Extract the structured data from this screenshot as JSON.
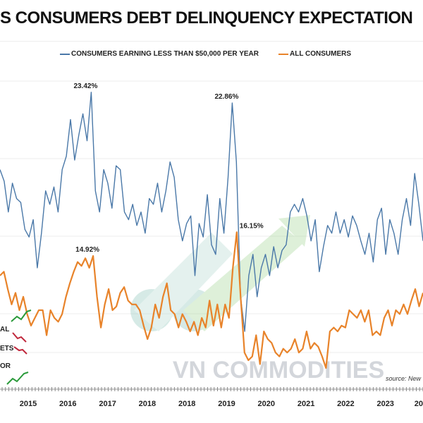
{
  "title": "S CONSUMERS DEBT DELINQUENCY EXPECTATION",
  "watermark": "VN COMMODITIES",
  "source": "source: New",
  "side_labels": [
    "AL",
    "ETS",
    "OR"
  ],
  "chart_data": {
    "type": "line",
    "title": "S CONSUMERS DEBT DELINQUENCY EXPECTATION",
    "xlabel": "",
    "ylabel": "",
    "ylim": [
      8.0,
      24.0
    ],
    "x_tick_labels": [
      "2015",
      "2016",
      "2017",
      "2018",
      "2018",
      "2019",
      "2020",
      "2021",
      "2022",
      "2023",
      "20"
    ],
    "grid": "faint horizontal",
    "legend_placement": "top",
    "series": [
      {
        "name": "CONSUMERS EARNING LESS THAN $50,000 PER YEAR",
        "color": "#4a78a8",
        "values": [
          19.4,
          18.8,
          17.2,
          18.7,
          17.9,
          17.7,
          16.3,
          15.9,
          16.8,
          14.3,
          16.1,
          18.3,
          17.6,
          18.5,
          17.2,
          19.4,
          20.1,
          22.0,
          19.9,
          21.2,
          22.3,
          20.9,
          23.42,
          18.3,
          17.2,
          19.4,
          18.7,
          17.4,
          19.6,
          19.4,
          17.2,
          16.8,
          17.6,
          16.5,
          17.2,
          16.1,
          17.9,
          17.6,
          18.7,
          17.2,
          18.3,
          19.8,
          19.0,
          16.8,
          15.7,
          16.6,
          17.0,
          13.9,
          16.6,
          15.9,
          18.1,
          15.5,
          15.0,
          17.9,
          16.1,
          19.0,
          22.86,
          19.8,
          12.8,
          11.0,
          13.9,
          15.0,
          12.8,
          14.3,
          15.0,
          13.9,
          15.4,
          14.3,
          15.2,
          15.5,
          17.2,
          17.6,
          17.2,
          17.9,
          17.0,
          15.7,
          16.8,
          14.1,
          15.4,
          16.5,
          16.1,
          17.2,
          16.1,
          16.8,
          15.9,
          17.0,
          16.5,
          15.7,
          15.0,
          16.1,
          14.6,
          16.8,
          17.4,
          15.0,
          16.8,
          16.1,
          15.0,
          16.8,
          17.9,
          16.5,
          19.2,
          17.6,
          15.7
        ],
        "annotations": [
          {
            "value": 23.42,
            "label": "23.42%"
          },
          {
            "value": 22.86,
            "label": "22.86%"
          }
        ]
      },
      {
        "name": "ALL CONSUMERS",
        "color": "#e8832a",
        "values": [
          13.9,
          14.1,
          13.2,
          12.4,
          13.0,
          12.1,
          12.8,
          11.9,
          11.3,
          11.7,
          12.1,
          12.1,
          10.8,
          12.1,
          11.7,
          11.5,
          11.9,
          12.8,
          13.5,
          14.1,
          14.6,
          14.4,
          14.8,
          14.3,
          14.92,
          12.8,
          11.2,
          12.4,
          13.2,
          12.1,
          12.3,
          13.0,
          13.3,
          12.6,
          12.4,
          12.4,
          12.1,
          11.3,
          10.6,
          11.2,
          12.4,
          11.7,
          12.8,
          13.5,
          12.1,
          11.9,
          11.2,
          11.9,
          11.5,
          11.0,
          11.5,
          10.8,
          11.7,
          11.2,
          12.6,
          11.3,
          12.4,
          11.2,
          12.4,
          11.7,
          14.3,
          16.15,
          12.8,
          9.9,
          9.5,
          9.7,
          10.8,
          9.3,
          11.0,
          10.6,
          10.4,
          9.9,
          9.7,
          10.1,
          9.9,
          10.1,
          10.6,
          9.9,
          10.1,
          11.0,
          10.1,
          10.4,
          10.2,
          9.7,
          9.1,
          11.0,
          11.2,
          11.0,
          11.3,
          11.2,
          12.1,
          11.9,
          11.7,
          12.1,
          11.5,
          12.1,
          10.8,
          11.0,
          10.8,
          11.7,
          12.1,
          11.3,
          12.1,
          11.9,
          12.4,
          11.9,
          12.6,
          13.2,
          12.3,
          13.0
        ],
        "annotations": [
          {
            "value": 14.92,
            "label": "14.92%"
          },
          {
            "value": 16.15,
            "label": "16.15%"
          }
        ]
      }
    ]
  }
}
